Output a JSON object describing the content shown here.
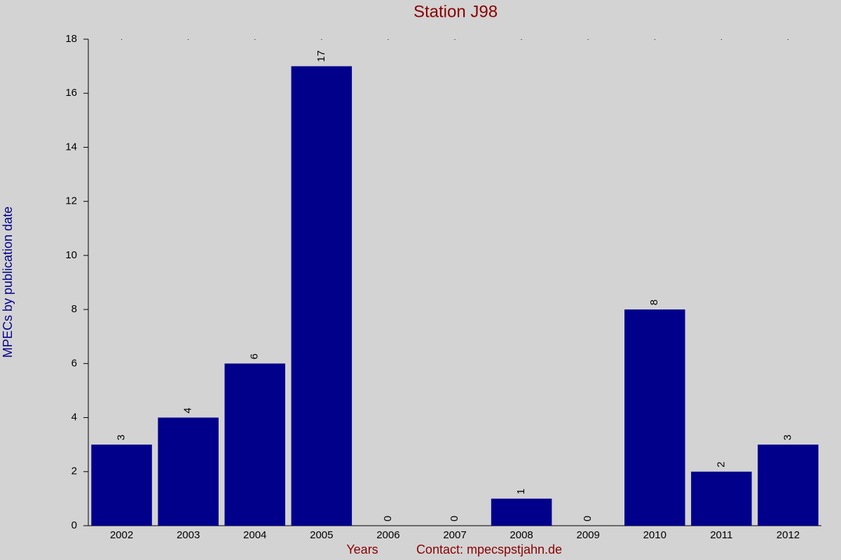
{
  "chart_data": {
    "type": "bar",
    "title": "Station J98",
    "x_label": "Years",
    "y_label": "MPECs by publication date",
    "annotation": "Contact: mpecspstjahn.de",
    "categories": [
      "2002",
      "2003",
      "2004",
      "2005",
      "2006",
      "2007",
      "2008",
      "2009",
      "2010",
      "2011",
      "2012"
    ],
    "values": [
      3,
      4,
      6,
      17,
      0,
      0,
      1,
      0,
      8,
      2,
      3
    ],
    "color": "#00008b",
    "ylim": [
      0,
      18
    ],
    "yticks": [
      0,
      2,
      4,
      6,
      8,
      10,
      12,
      14,
      16,
      18
    ],
    "grid": false
  }
}
